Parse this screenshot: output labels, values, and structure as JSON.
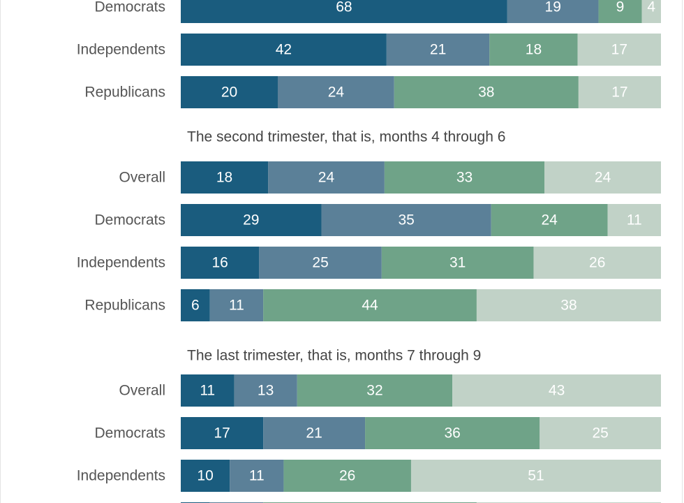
{
  "chart_data": {
    "type": "bar",
    "orientation": "horizontal",
    "stacked": true,
    "colors": [
      "#1a5c7e",
      "#5b8098",
      "#6fa388",
      "#c1d2c7"
    ],
    "sections": [
      {
        "title": "",
        "rows": [
          {
            "label": "Democrats",
            "values": [
              68,
              19,
              9,
              4
            ]
          },
          {
            "label": "Independents",
            "values": [
              42,
              21,
              18,
              17
            ]
          },
          {
            "label": "Republicans",
            "values": [
              20,
              24,
              38,
              17
            ]
          }
        ]
      },
      {
        "title": "The second trimester, that is, months 4 through 6",
        "rows": [
          {
            "label": "Overall",
            "values": [
              18,
              24,
              33,
              24
            ]
          },
          {
            "label": "Democrats",
            "values": [
              29,
              35,
              24,
              11
            ]
          },
          {
            "label": "Independents",
            "values": [
              16,
              25,
              31,
              26
            ]
          },
          {
            "label": "Republicans",
            "values": [
              6,
              11,
              44,
              38
            ]
          }
        ]
      },
      {
        "title": "The last trimester, that is, months 7 through 9",
        "rows": [
          {
            "label": "Overall",
            "values": [
              11,
              13,
              32,
              43
            ]
          },
          {
            "label": "Democrats",
            "values": [
              17,
              21,
              36,
              25
            ]
          },
          {
            "label": "Independents",
            "values": [
              10,
              11,
              26,
              51
            ]
          }
        ]
      }
    ]
  }
}
